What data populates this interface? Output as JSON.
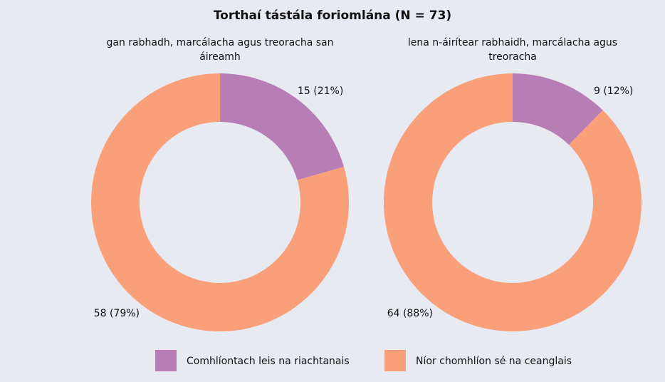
{
  "title": "Torthaí tástála foriomlána (N = 73)",
  "chart_data": [
    {
      "type": "pie",
      "subtitle": [
        "gan rabhadh, marcálacha agus treoracha san",
        "áireamh"
      ],
      "categories": [
        "Comhlíontach leis na riachtanais",
        "Níor chomhlíon sé na ceanglais"
      ],
      "values": [
        15,
        58
      ],
      "value_labels": [
        "15 (21%)",
        "58 (79%)"
      ],
      "colors": [
        "#b77db5",
        "#f9a07a"
      ]
    },
    {
      "type": "pie",
      "subtitle": [
        "lena n-áirítear rabhaidh, marcálacha agus",
        "treoracha"
      ],
      "categories": [
        "Comhlíontach leis na riachtanais",
        "Níor chomhlíon sé na ceanglais"
      ],
      "values": [
        9,
        64
      ],
      "value_labels": [
        "9 (12%)",
        "64 (88%)"
      ],
      "colors": [
        "#b77db5",
        "#f9a07a"
      ]
    }
  ]
}
